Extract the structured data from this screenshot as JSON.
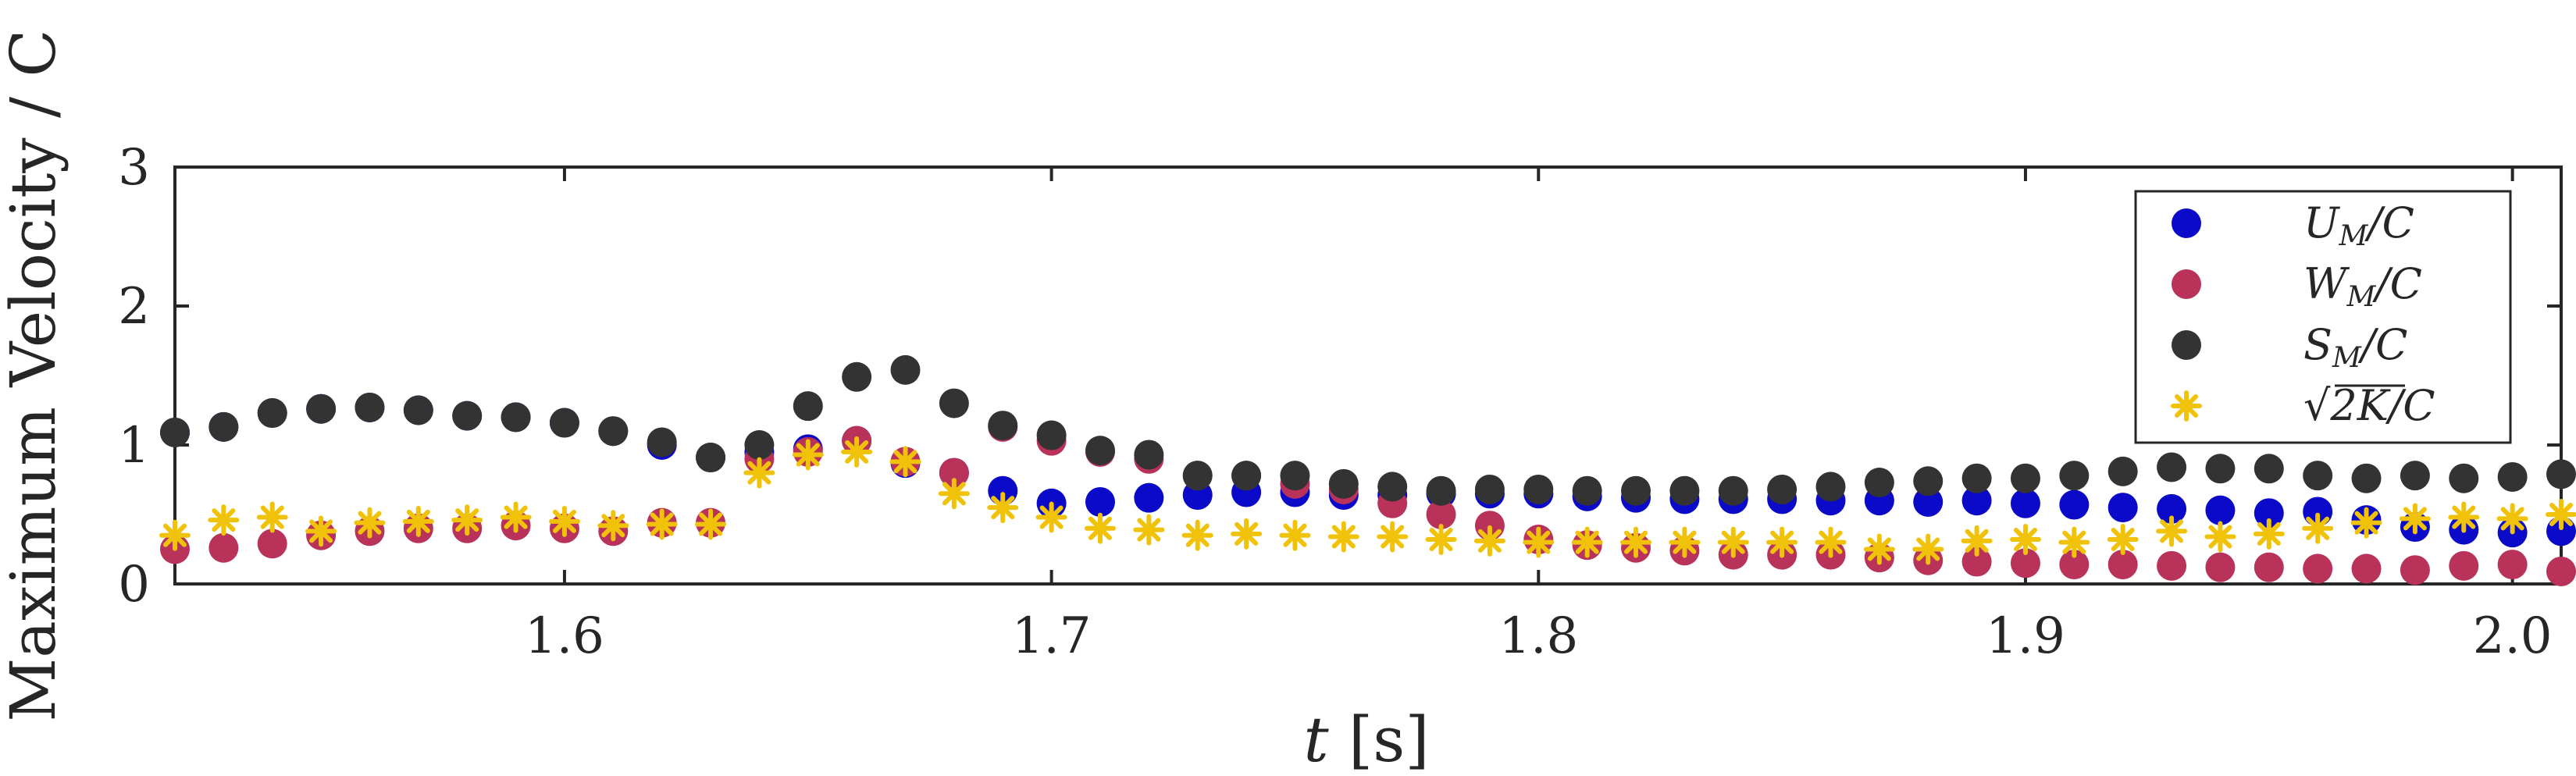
{
  "chart_data": {
    "type": "scatter",
    "xlabel": "t [s]",
    "ylabel": "Maximum Velocity / C",
    "xlim": [
      1.52,
      2.01
    ],
    "ylim": [
      0,
      3
    ],
    "xticks": [
      "1.6",
      "1.7",
      "1.8",
      "1.9",
      "2.0"
    ],
    "xtick_values": [
      1.6,
      1.7,
      1.8,
      1.9,
      2.0
    ],
    "yticks": [
      "0",
      "1",
      "2",
      "3"
    ],
    "ytick_values": [
      0,
      1,
      2,
      3
    ],
    "grid": false,
    "legend_position": "top-right",
    "x": [
      1.52,
      1.53,
      1.54,
      1.55,
      1.56,
      1.57,
      1.58,
      1.59,
      1.6,
      1.61,
      1.62,
      1.63,
      1.64,
      1.65,
      1.66,
      1.67,
      1.68,
      1.69,
      1.7,
      1.71,
      1.72,
      1.73,
      1.74,
      1.75,
      1.76,
      1.77,
      1.78,
      1.79,
      1.8,
      1.81,
      1.82,
      1.83,
      1.84,
      1.85,
      1.86,
      1.87,
      1.88,
      1.89,
      1.9,
      1.91,
      1.92,
      1.93,
      1.94,
      1.95,
      1.96,
      1.97,
      1.98,
      1.99,
      2.0,
      2.01
    ],
    "series": [
      {
        "name": "U_M/C",
        "marker": "circle",
        "color": "#0a0ac8",
        "values": [
          1.09,
          1.13,
          1.23,
          1.26,
          1.27,
          1.25,
          1.21,
          1.2,
          1.16,
          1.1,
          1.0,
          0.91,
          0.95,
          0.97,
          1.03,
          0.87,
          0.8,
          0.67,
          0.58,
          0.59,
          0.62,
          0.64,
          0.66,
          0.66,
          0.64,
          0.64,
          0.65,
          0.65,
          0.65,
          0.63,
          0.62,
          0.61,
          0.61,
          0.61,
          0.6,
          0.6,
          0.59,
          0.6,
          0.58,
          0.57,
          0.55,
          0.54,
          0.53,
          0.51,
          0.52,
          0.46,
          0.41,
          0.39,
          0.37,
          0.38
        ]
      },
      {
        "name": "W_M/C",
        "marker": "circle",
        "color": "#b8325a",
        "values": [
          0.25,
          0.26,
          0.29,
          0.35,
          0.38,
          0.4,
          0.4,
          0.42,
          0.4,
          0.38,
          0.44,
          0.44,
          0.9,
          0.95,
          1.03,
          0.88,
          0.8,
          1.13,
          1.03,
          0.95,
          0.9,
          0.78,
          0.78,
          0.72,
          0.68,
          0.58,
          0.5,
          0.42,
          0.32,
          0.28,
          0.26,
          0.24,
          0.21,
          0.21,
          0.21,
          0.19,
          0.17,
          0.16,
          0.15,
          0.14,
          0.14,
          0.13,
          0.12,
          0.12,
          0.11,
          0.11,
          0.1,
          0.13,
          0.14,
          0.09
        ]
      },
      {
        "name": "S_M/C",
        "marker": "circle",
        "color": "#333333",
        "values": [
          1.09,
          1.13,
          1.23,
          1.26,
          1.27,
          1.25,
          1.21,
          1.2,
          1.16,
          1.1,
          1.02,
          0.91,
          1.0,
          1.28,
          1.49,
          1.54,
          1.3,
          1.14,
          1.07,
          0.96,
          0.93,
          0.78,
          0.78,
          0.78,
          0.72,
          0.7,
          0.67,
          0.68,
          0.68,
          0.67,
          0.67,
          0.67,
          0.67,
          0.68,
          0.7,
          0.73,
          0.74,
          0.76,
          0.76,
          0.78,
          0.81,
          0.84,
          0.83,
          0.83,
          0.78,
          0.76,
          0.78,
          0.76,
          0.77,
          0.79
        ]
      },
      {
        "name": "√2K/C",
        "marker": "asterisk",
        "color": "#f0c30a",
        "values": [
          0.35,
          0.46,
          0.48,
          0.38,
          0.44,
          0.45,
          0.46,
          0.48,
          0.45,
          0.42,
          0.43,
          0.43,
          0.8,
          0.93,
          0.95,
          0.88,
          0.65,
          0.55,
          0.48,
          0.4,
          0.39,
          0.35,
          0.36,
          0.35,
          0.34,
          0.34,
          0.32,
          0.31,
          0.3,
          0.3,
          0.3,
          0.3,
          0.3,
          0.3,
          0.3,
          0.25,
          0.25,
          0.31,
          0.32,
          0.3,
          0.32,
          0.38,
          0.34,
          0.36,
          0.4,
          0.44,
          0.47,
          0.48,
          0.47,
          0.5
        ]
      }
    ]
  }
}
